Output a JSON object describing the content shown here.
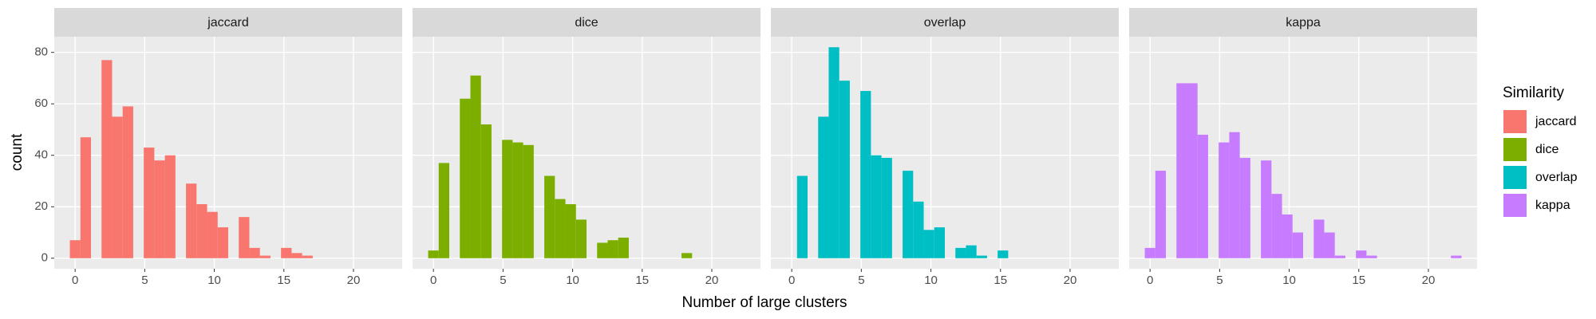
{
  "chart_data": {
    "type": "histogram",
    "xlabel": "Number of large clusters",
    "ylabel": "count",
    "legend_title": "Similarity",
    "legend_position": "right",
    "grid": true,
    "bins": [
      -0.3793,
      0.3793,
      1.1379,
      1.8966,
      2.6552,
      3.4138,
      4.1724,
      4.931,
      5.6897,
      6.4483,
      7.2069,
      7.9655,
      8.7241,
      9.4828,
      10.2414,
      11.0,
      11.7586,
      12.5172,
      13.2759,
      14.0345,
      14.7931,
      15.5517,
      16.3103,
      17.069,
      17.8276,
      18.5862,
      19.3448,
      20.1034,
      20.8621,
      21.6207,
      22.3793
    ],
    "series": [
      {
        "name": "jaccard",
        "color": "#F8766D",
        "values": [
          7,
          47,
          0,
          77,
          55,
          59,
          0,
          43,
          38,
          40,
          0,
          29,
          21,
          18,
          12,
          0,
          16,
          4,
          1,
          0,
          4,
          2,
          1,
          0,
          0,
          0,
          0,
          0,
          0,
          0
        ]
      },
      {
        "name": "dice",
        "color": "#7CAE00",
        "values": [
          3,
          37,
          0,
          62,
          71,
          52,
          0,
          46,
          45,
          44,
          0,
          32,
          23,
          21,
          15,
          0,
          6,
          7,
          8,
          0,
          0,
          0,
          0,
          0,
          2,
          0,
          0,
          0,
          0,
          0
        ]
      },
      {
        "name": "overlap",
        "color": "#00BFC4",
        "values": [
          0,
          32,
          0,
          55,
          82,
          69,
          0,
          65,
          40,
          39,
          0,
          34,
          22,
          11,
          12,
          0,
          4,
          5,
          1,
          0,
          3,
          0,
          0,
          0,
          0,
          0,
          0,
          0,
          0,
          0
        ]
      },
      {
        "name": "kappa",
        "color": "#C77CFF",
        "values": [
          4,
          34,
          0,
          68,
          68,
          48,
          0,
          45,
          49,
          39,
          0,
          38,
          25,
          17,
          10,
          0,
          15,
          10,
          1,
          0,
          3,
          1,
          0,
          0,
          0,
          0,
          0,
          0,
          0,
          1
        ]
      }
    ],
    "xlim": [
      -1.5,
      23.5
    ],
    "ylim": [
      -4.1,
      86.1
    ],
    "xticks": [
      0,
      5,
      10,
      15,
      20
    ],
    "yticks": [
      0,
      20,
      40,
      60,
      80
    ]
  }
}
